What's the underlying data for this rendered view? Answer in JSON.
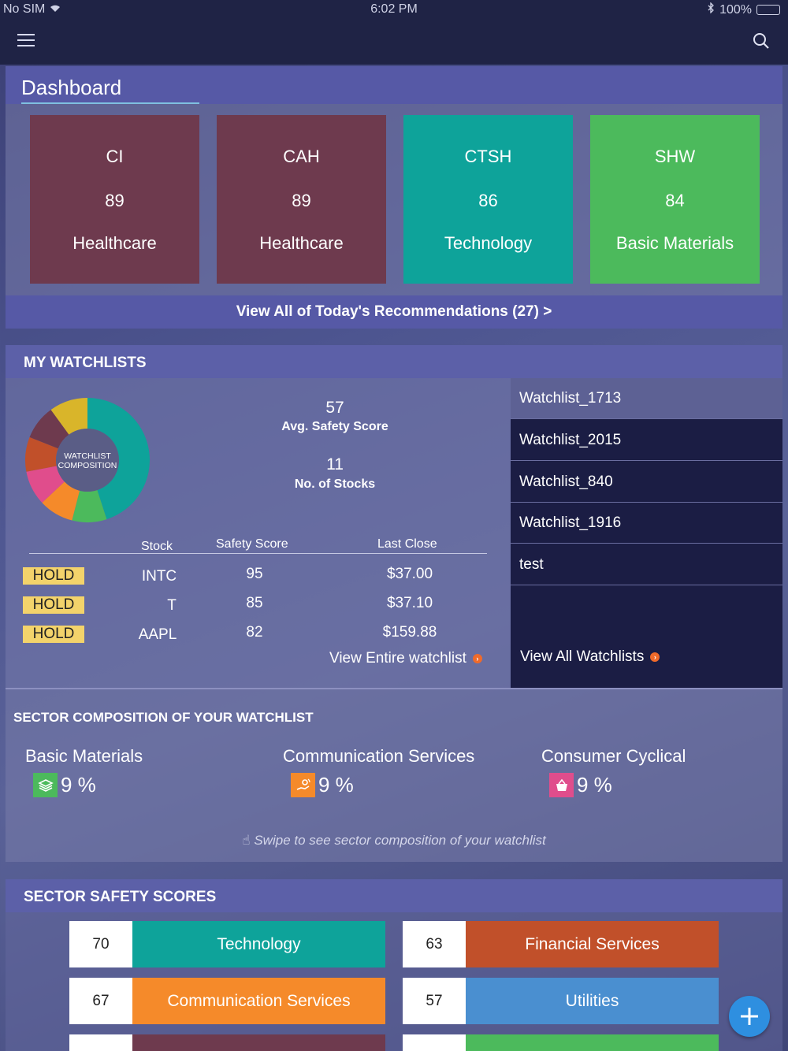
{
  "status_bar": {
    "carrier": "No SIM",
    "time": "6:02 PM",
    "battery": "100%"
  },
  "dashboard": {
    "title": "Dashboard"
  },
  "recommendations": {
    "tiles": [
      {
        "symbol": "CI",
        "score": "89",
        "sector": "Healthcare",
        "color": "#6e3a4e"
      },
      {
        "symbol": "CAH",
        "score": "89",
        "sector": "Healthcare",
        "color": "#6e3a4e"
      },
      {
        "symbol": "CTSH",
        "score": "86",
        "sector": "Technology",
        "color": "#0ea39a"
      },
      {
        "symbol": "SHW",
        "score": "84",
        "sector": "Basic Materials",
        "color": "#4cba5c"
      }
    ],
    "view_all_label": "View All of Today's Recommendations (27) >"
  },
  "watchlists": {
    "header": "MY WATCHLISTS",
    "donut_label_line1": "WATCHLIST",
    "donut_label_line2": "COMPOSITION",
    "avg_safety_score": "57",
    "avg_safety_score_label": "Avg. Safety Score",
    "num_stocks": "11",
    "num_stocks_label": "No. of Stocks",
    "columns": {
      "stock": "Stock",
      "safety": "Safety Score",
      "last_close": "Last Close"
    },
    "rows": [
      {
        "action": "HOLD",
        "stock": "INTC",
        "safety": "95",
        "last_close": "$37.00"
      },
      {
        "action": "HOLD",
        "stock": "T",
        "safety": "85",
        "last_close": "$37.10"
      },
      {
        "action": "HOLD",
        "stock": "AAPL",
        "safety": "82",
        "last_close": "$159.88"
      }
    ],
    "view_entire_label": "View Entire watchlist",
    "list": [
      "Watchlist_1713",
      "Watchlist_2015",
      "Watchlist_840",
      "Watchlist_1916",
      "test"
    ],
    "view_all_label": "View All Watchlists"
  },
  "sector_composition": {
    "title": "SECTOR COMPOSITION OF YOUR WATCHLIST",
    "items": [
      {
        "name": "Basic Materials",
        "value": "9 %",
        "icon": "layers-icon",
        "color": "#4cba5c"
      },
      {
        "name": "Communication Services",
        "value": "9 %",
        "icon": "hand-signal-icon",
        "color": "#f58a2a"
      },
      {
        "name": "Consumer Cyclical",
        "value": "9 %",
        "icon": "basket-icon",
        "color": "#e04d8c"
      }
    ],
    "swipe_hint": "Swipe to see sector composition of your watchlist"
  },
  "sector_safety": {
    "header": "SECTOR SAFETY SCORES",
    "rows": [
      {
        "score": "70",
        "name": "Technology",
        "color": "#0ea39a"
      },
      {
        "score": "63",
        "name": "Financial Services",
        "color": "#c1502a"
      },
      {
        "score": "67",
        "name": "Communication Services",
        "color": "#f58a2a"
      },
      {
        "score": "57",
        "name": "Utilities",
        "color": "#4a8fd0"
      }
    ],
    "partial_colors": [
      "#6e3a4e",
      "#4cba5c"
    ]
  },
  "donut_segments": [
    {
      "color": "#0ea39a",
      "fraction": 0.45
    },
    {
      "color": "#4cba5c",
      "fraction": 0.09
    },
    {
      "color": "#f58a2a",
      "fraction": 0.09
    },
    {
      "color": "#e04d8c",
      "fraction": 0.09
    },
    {
      "color": "#c1502a",
      "fraction": 0.09
    },
    {
      "color": "#6e3a4e",
      "fraction": 0.09
    },
    {
      "color": "#d9b52a",
      "fraction": 0.1
    }
  ]
}
